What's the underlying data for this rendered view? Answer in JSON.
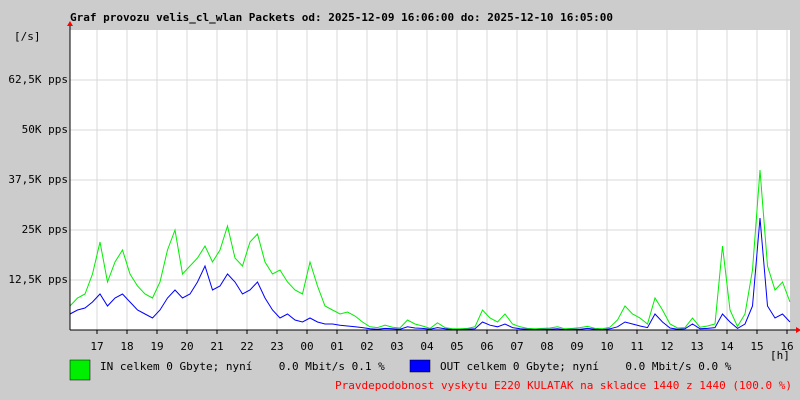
{
  "chart_data": {
    "type": "line",
    "title": "Graf provozu velis_cl_wlan Packets od: 2025-12-09 16:06:00 do: 2025-12-10 16:05:00",
    "y_unit": "[/s]",
    "x_unit": "[h]",
    "x": [
      0,
      0.25,
      0.5,
      0.75,
      1,
      1.25,
      1.5,
      1.75,
      2,
      2.25,
      2.5,
      2.75,
      3,
      3.25,
      3.5,
      3.75,
      4,
      4.25,
      4.5,
      4.75,
      5,
      5.25,
      5.5,
      5.75,
      6,
      6.25,
      6.5,
      6.75,
      7,
      7.25,
      7.5,
      7.75,
      8,
      8.25,
      8.5,
      8.75,
      9,
      9.25,
      9.5,
      9.75,
      10,
      10.25,
      10.5,
      10.75,
      11,
      11.25,
      11.5,
      11.75,
      12,
      12.25,
      12.5,
      12.75,
      13,
      13.25,
      13.5,
      13.75,
      14,
      14.25,
      14.5,
      14.75,
      15,
      15.25,
      15.5,
      15.75,
      16,
      16.25,
      16.5,
      16.75,
      17,
      17.25,
      17.5,
      17.75,
      18,
      18.25,
      18.5,
      18.75,
      19,
      19.25,
      19.5,
      19.75,
      20,
      20.25,
      20.5,
      20.75,
      21,
      21.25,
      21.5,
      21.75,
      22,
      22.25,
      22.5,
      22.75,
      23,
      23.25,
      23.5,
      23.75,
      24
    ],
    "series": [
      {
        "name": "IN celkem 0 Gbyte; nyní    0.0 Mbit/s 0.1 %",
        "color": "#00ee00",
        "values": [
          6000,
          8000,
          9000,
          14000,
          22000,
          12000,
          17000,
          20000,
          14000,
          11000,
          9000,
          8000,
          12000,
          20000,
          25000,
          14000,
          16000,
          18000,
          21000,
          17000,
          20000,
          26000,
          18000,
          16000,
          22000,
          24000,
          17000,
          14000,
          15000,
          12000,
          10000,
          9000,
          17000,
          11000,
          6000,
          5000,
          4000,
          4500,
          3500,
          2000,
          800,
          600,
          1200,
          700,
          500,
          2500,
          1500,
          1000,
          400,
          1800,
          600,
          300,
          300,
          400,
          800,
          5000,
          3000,
          2000,
          4000,
          1500,
          800,
          400,
          300,
          400,
          500,
          800,
          300,
          400,
          600,
          900,
          400,
          300,
          700,
          2500,
          6000,
          4000,
          3000,
          1500,
          8000,
          5000,
          1500,
          500,
          600,
          3000,
          700,
          1000,
          1500,
          21000,
          5000,
          900,
          4000,
          15000,
          40000,
          16000,
          10000,
          12000,
          7000
        ]
      },
      {
        "name": "OUT celkem 0 Gbyte; nyní    0.0 Mbit/s 0.0 %",
        "color": "#0000ff",
        "values": [
          4000,
          5000,
          5500,
          7000,
          9000,
          6000,
          8000,
          9000,
          7000,
          5000,
          4000,
          3000,
          5000,
          8000,
          10000,
          8000,
          9000,
          12000,
          16000,
          10000,
          11000,
          14000,
          12000,
          9000,
          10000,
          12000,
          8000,
          5000,
          3000,
          4000,
          2500,
          2000,
          3000,
          2000,
          1500,
          1500,
          1200,
          1000,
          800,
          600,
          300,
          200,
          400,
          300,
          200,
          800,
          500,
          400,
          200,
          600,
          300,
          100,
          100,
          200,
          300,
          2000,
          1200,
          800,
          1500,
          600,
          300,
          200,
          100,
          200,
          200,
          300,
          100,
          200,
          200,
          400,
          200,
          100,
          300,
          800,
          2000,
          1500,
          1000,
          600,
          4000,
          2000,
          500,
          200,
          300,
          1500,
          300,
          400,
          600,
          4000,
          2000,
          400,
          1500,
          6000,
          28000,
          6000,
          3000,
          4000,
          2000
        ]
      }
    ],
    "xlim": [
      0,
      24
    ],
    "ylim": [
      0,
      75000
    ],
    "xticks": [
      {
        "value": 0.9,
        "label": "17"
      },
      {
        "value": 1.9,
        "label": "18"
      },
      {
        "value": 2.9,
        "label": "19"
      },
      {
        "value": 3.9,
        "label": "20"
      },
      {
        "value": 4.9,
        "label": "21"
      },
      {
        "value": 5.9,
        "label": "22"
      },
      {
        "value": 6.9,
        "label": "23"
      },
      {
        "value": 7.9,
        "label": "00"
      },
      {
        "value": 8.9,
        "label": "01"
      },
      {
        "value": 9.9,
        "label": "02"
      },
      {
        "value": 10.9,
        "label": "03"
      },
      {
        "value": 11.9,
        "label": "04"
      },
      {
        "value": 12.9,
        "label": "05"
      },
      {
        "value": 13.9,
        "label": "06"
      },
      {
        "value": 14.9,
        "label": "07"
      },
      {
        "value": 15.9,
        "label": "08"
      },
      {
        "value": 16.9,
        "label": "09"
      },
      {
        "value": 17.9,
        "label": "10"
      },
      {
        "value": 18.9,
        "label": "11"
      },
      {
        "value": 19.9,
        "label": "12"
      },
      {
        "value": 20.9,
        "label": "13"
      },
      {
        "value": 21.9,
        "label": "14"
      },
      {
        "value": 22.9,
        "label": "15"
      },
      {
        "value": 23.9,
        "label": "16"
      }
    ],
    "yticks": [
      {
        "value": 12500,
        "label": "12,5K pps"
      },
      {
        "value": 25000,
        "label": "25K pps"
      },
      {
        "value": 37500,
        "label": "37,5K pps"
      },
      {
        "value": 50000,
        "label": "50K pps"
      },
      {
        "value": 62500,
        "label": "62,5K pps"
      }
    ],
    "grid": true,
    "footer": "Pravdepodobnost vyskytu E220 KULATAK na skladce 1440 z 1440 (100.0 %)"
  }
}
